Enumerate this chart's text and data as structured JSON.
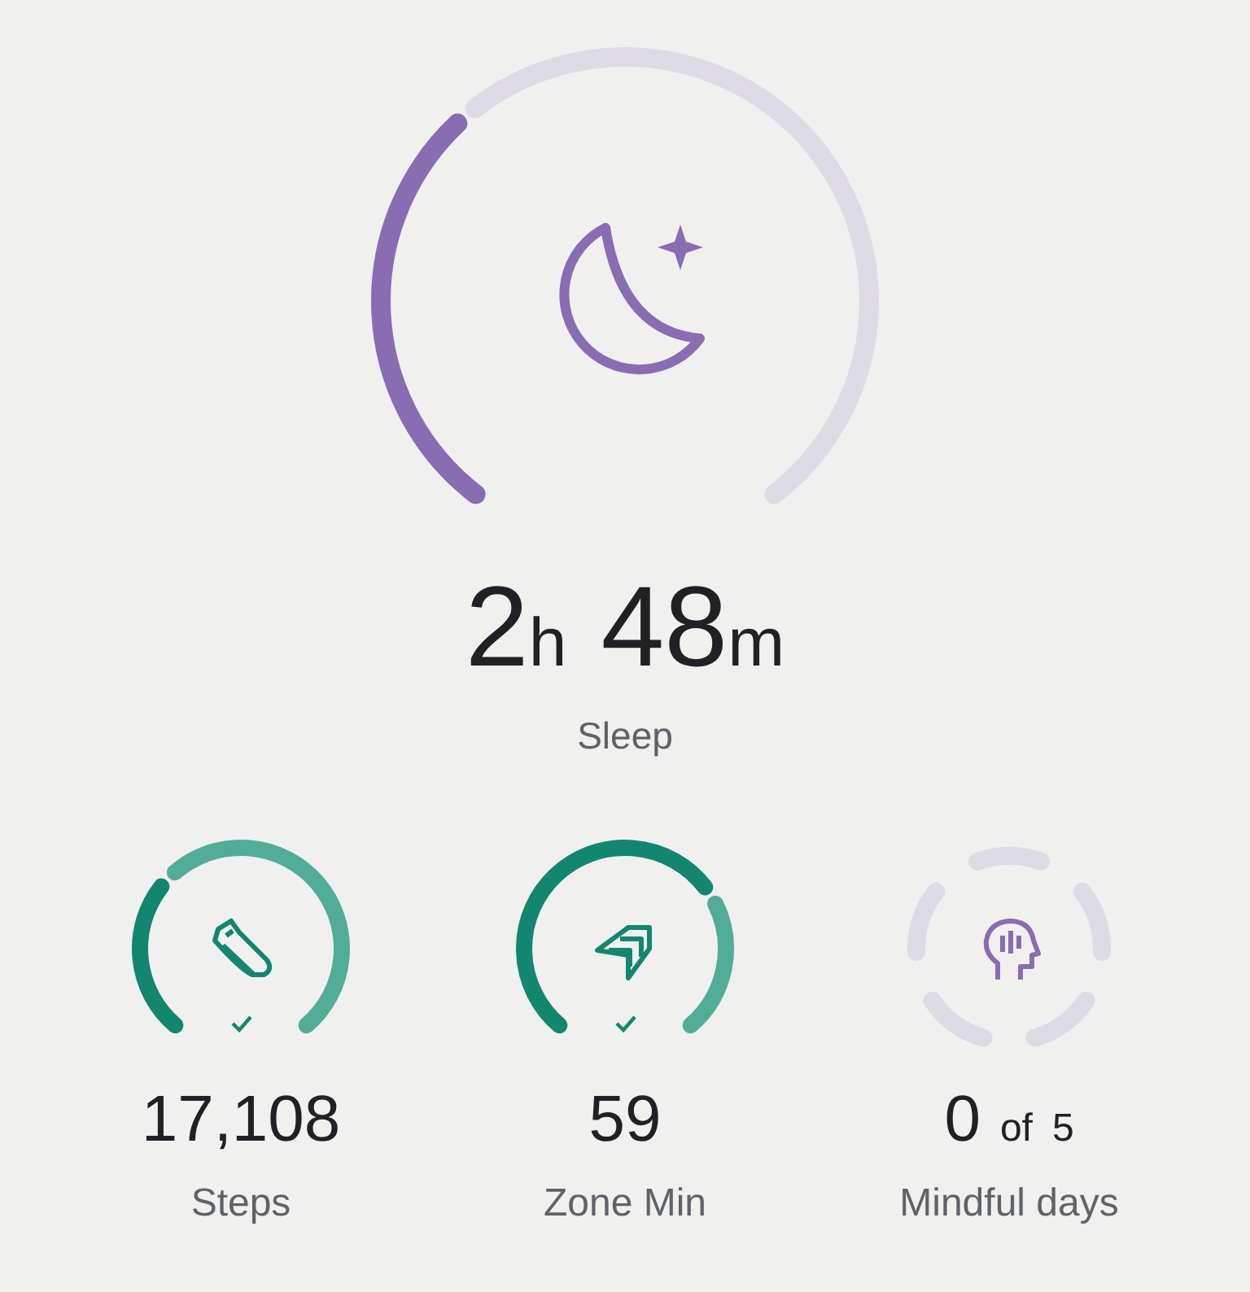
{
  "chart_data": [
    {
      "type": "donut",
      "title": "2h 48m",
      "subtitle": "Sleep",
      "categories": [
        null,
        null
      ],
      "values": [
        36,
        64
      ],
      "colors": [
        "#8a6cb3",
        "#dedbe6"
      ]
    },
    {
      "type": "donut",
      "title": "17,108",
      "subtitle": "Steps",
      "categories": [
        null,
        null
      ],
      "values": [
        34,
        66
      ],
      "colors": [
        "#13866f",
        "#52ad98"
      ]
    },
    {
      "type": "donut",
      "title": "59",
      "subtitle": "Zone Min",
      "categories": [
        null,
        null
      ],
      "values": [
        70,
        30
      ],
      "colors": [
        "#13866f",
        "#52ad98"
      ]
    },
    {
      "type": "other",
      "title": "0 of 5",
      "subtitle": "Mindful days"
    }
  ]
}
